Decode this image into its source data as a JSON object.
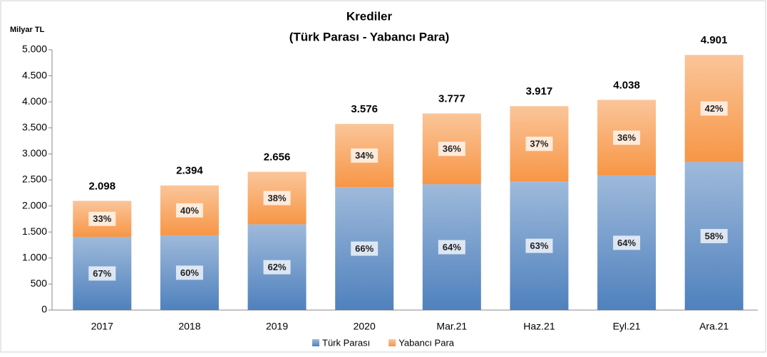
{
  "chart_data": {
    "type": "stacked_bar",
    "title": "Krediler",
    "subtitle": "(Türk Parası - Yabancı Para)",
    "y_label": "Milyar TL",
    "categories": [
      "2017",
      "2018",
      "2019",
      "2020",
      "Mar.21",
      "Haz.21",
      "Eyl.21",
      "Ara.21"
    ],
    "series": [
      {
        "name": "Türk Parası",
        "color": "#4f81bd",
        "values": [
          1406,
          1436,
          1647,
          2360,
          2417,
          2468,
          2584,
          2843
        ],
        "percent_labels": [
          "67%",
          "60%",
          "62%",
          "66%",
          "64%",
          "63%",
          "64%",
          "58%"
        ]
      },
      {
        "name": "Yabancı Para",
        "color": "#f79646",
        "values": [
          692,
          958,
          1009,
          1216,
          1360,
          1449,
          1454,
          2058
        ],
        "percent_labels": [
          "33%",
          "40%",
          "38%",
          "34%",
          "36%",
          "37%",
          "36%",
          "42%"
        ]
      }
    ],
    "totals": {
      "values": [
        2098,
        2394,
        2656,
        3576,
        3777,
        3917,
        4038,
        4901
      ],
      "labels": [
        "2.098",
        "2.394",
        "2.656",
        "3.576",
        "3.777",
        "3.917",
        "4.038",
        "4.901"
      ]
    },
    "ylim": [
      0,
      5000
    ],
    "yticks": [
      0,
      500,
      {
        "value": 1000,
        "label": "1.000"
      },
      {
        "value": 1500,
        "label": "1.500"
      },
      {
        "value": 2000,
        "label": "2.000"
      },
      {
        "value": 2500,
        "label": "2.500"
      },
      {
        "value": 3000,
        "label": "3.000"
      },
      {
        "value": 3500,
        "label": "3.500"
      },
      {
        "value": 4000,
        "label": "4.000"
      },
      {
        "value": 4500,
        "label": "4.500"
      },
      {
        "value": 5000,
        "label": "5.000"
      }
    ],
    "grid": false,
    "legend": "bottom"
  }
}
